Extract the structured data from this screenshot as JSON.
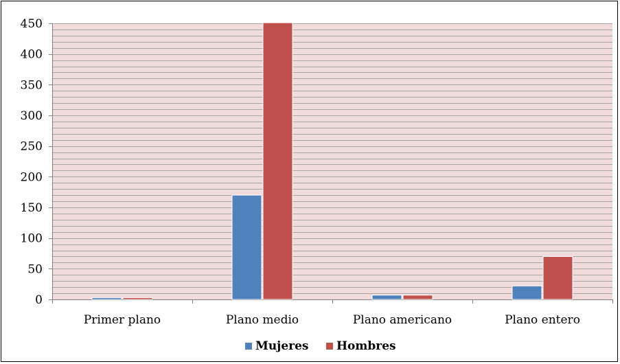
{
  "chart_data": {
    "type": "bar",
    "title": "",
    "xlabel": "",
    "ylabel": "",
    "categories": [
      "Primer plano",
      "Plano medio",
      "Plano americano",
      "Plano entero"
    ],
    "series": [
      {
        "name": "Mujeres",
        "values": [
          3,
          170,
          7,
          22
        ]
      },
      {
        "name": "Hombres",
        "values": [
          3,
          451,
          7,
          70
        ]
      }
    ],
    "ylim": [
      0,
      450
    ],
    "yticks": [
      "0",
      "50",
      "100",
      "150",
      "200",
      "250",
      "300",
      "350",
      "400",
      "450"
    ],
    "minor_gridlines": true,
    "legend": "bottom",
    "colors": {
      "plot_background": "#f2dcdb",
      "gridline": "#a6a6a6",
      "Mujeres": "#4f81bd",
      "Hombres": "#c0504d"
    }
  }
}
